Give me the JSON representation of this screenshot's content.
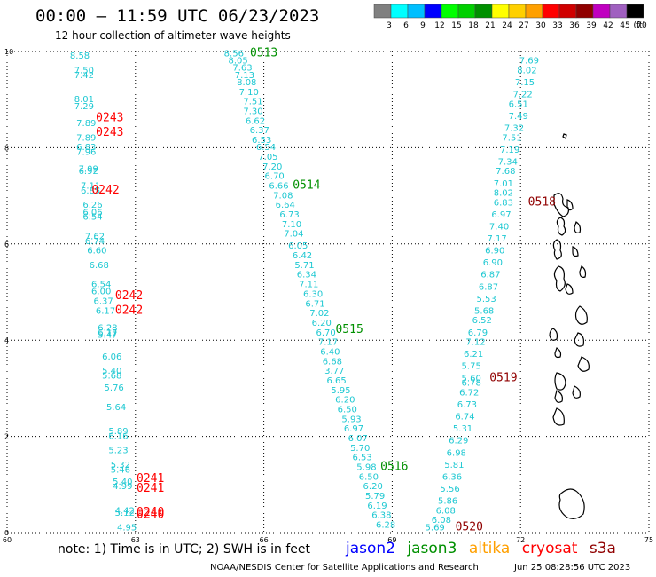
{
  "title": "00:00 – 11:59 UTC 06/23/2023",
  "subtitle": "12 hour collection of altimeter wave heights",
  "colorbar": {
    "unit": "(ft)",
    "labels": [
      "3",
      "6",
      "9",
      "12",
      "15",
      "18",
      "21",
      "24",
      "27",
      "30",
      "33",
      "36",
      "39",
      "42",
      "45",
      "70"
    ],
    "colors": [
      "#808080",
      "#00ffff",
      "#00bfff",
      "#0000ff",
      "#00ff00",
      "#00d000",
      "#009000",
      "#ffff00",
      "#ffd000",
      "#ffa000",
      "#ff0000",
      "#d00000",
      "#900000",
      "#c000c0",
      "#a060c0",
      "#000000"
    ]
  },
  "axes": {
    "x_ticks": [
      "60",
      "63",
      "66",
      "69",
      "72",
      "75"
    ],
    "y_ticks": [
      "0",
      "2",
      "4",
      "6",
      "8",
      "10"
    ],
    "xlim": [
      60,
      75
    ],
    "ylim": [
      0,
      10
    ]
  },
  "satellite_colors": {
    "jason2": "#0000ff",
    "jason3": "#009000",
    "altika": "#ffa000",
    "cryosat": "#ff0000",
    "s3a": "#900000"
  },
  "tracks": [
    {
      "name": "track-1",
      "color": "#ff0000",
      "times": [
        {
          "t": "0243",
          "lon": 62.4,
          "lat": 8.55
        },
        {
          "t": "0243",
          "lon": 62.4,
          "lat": 8.25
        },
        {
          "t": "0242",
          "lon": 62.3,
          "lat": 7.05
        },
        {
          "t": "0242",
          "lon": 62.85,
          "lat": 4.85
        },
        {
          "t": "0242",
          "lon": 62.85,
          "lat": 4.55
        },
        {
          "t": "0241",
          "lon": 63.35,
          "lat": 1.05
        },
        {
          "t": "0241",
          "lon": 63.35,
          "lat": 0.85
        },
        {
          "t": "0240",
          "lon": 63.35,
          "lat": 0.35
        },
        {
          "t": "0240",
          "lon": 63.35,
          "lat": 0.3
        }
      ],
      "points": [
        {
          "v": "8.58",
          "lon": 61.7,
          "lat": 9.85
        },
        {
          "v": "7.50",
          "lon": 61.8,
          "lat": 9.55
        },
        {
          "v": "7.42",
          "lon": 61.8,
          "lat": 9.45
        },
        {
          "v": "8.01",
          "lon": 61.8,
          "lat": 8.95
        },
        {
          "v": "7.29",
          "lon": 61.8,
          "lat": 8.8
        },
        {
          "v": "7.89",
          "lon": 61.85,
          "lat": 8.45
        },
        {
          "v": "7.89",
          "lon": 61.85,
          "lat": 8.15
        },
        {
          "v": "6.83",
          "lon": 61.85,
          "lat": 7.95
        },
        {
          "v": "7.96",
          "lon": 61.85,
          "lat": 7.85
        },
        {
          "v": "7.09",
          "lon": 61.9,
          "lat": 7.5
        },
        {
          "v": "6.92",
          "lon": 61.9,
          "lat": 7.45
        },
        {
          "v": "7.11",
          "lon": 61.95,
          "lat": 7.15
        },
        {
          "v": "6.85",
          "lon": 61.95,
          "lat": 7.05
        },
        {
          "v": "6.26",
          "lon": 62.0,
          "lat": 6.75
        },
        {
          "v": "6.06",
          "lon": 62.0,
          "lat": 6.6
        },
        {
          "v": "6.54",
          "lon": 62.0,
          "lat": 6.5
        },
        {
          "v": "7.62",
          "lon": 62.05,
          "lat": 6.1
        },
        {
          "v": "6.74",
          "lon": 62.05,
          "lat": 6.0
        },
        {
          "v": "6.60",
          "lon": 62.1,
          "lat": 5.8
        },
        {
          "v": "6.68",
          "lon": 62.15,
          "lat": 5.5
        },
        {
          "v": "6.54",
          "lon": 62.2,
          "lat": 5.1
        },
        {
          "v": "6.00",
          "lon": 62.2,
          "lat": 4.95
        },
        {
          "v": "6.37",
          "lon": 62.25,
          "lat": 4.75
        },
        {
          "v": "6.17",
          "lon": 62.3,
          "lat": 4.55
        },
        {
          "v": "6.28",
          "lon": 62.35,
          "lat": 4.2
        },
        {
          "v": "6.17",
          "lon": 62.35,
          "lat": 4.1
        },
        {
          "v": "5.47",
          "lon": 62.35,
          "lat": 4.05
        },
        {
          "v": "6.06",
          "lon": 62.45,
          "lat": 3.6
        },
        {
          "v": "5.40",
          "lon": 62.45,
          "lat": 3.3
        },
        {
          "v": "5.68",
          "lon": 62.45,
          "lat": 3.2
        },
        {
          "v": "5.76",
          "lon": 62.5,
          "lat": 2.95
        },
        {
          "v": "5.64",
          "lon": 62.55,
          "lat": 2.55
        },
        {
          "v": "5.89",
          "lon": 62.6,
          "lat": 2.05
        },
        {
          "v": "6.16",
          "lon": 62.6,
          "lat": 1.95
        },
        {
          "v": "5.23",
          "lon": 62.6,
          "lat": 1.65
        },
        {
          "v": "5.32",
          "lon": 62.65,
          "lat": 1.35
        },
        {
          "v": "5.46",
          "lon": 62.65,
          "lat": 1.25
        },
        {
          "v": "5.40",
          "lon": 62.7,
          "lat": 1.0
        },
        {
          "v": "4.99",
          "lon": 62.7,
          "lat": 0.9
        },
        {
          "v": "4.42",
          "lon": 62.75,
          "lat": 0.4
        },
        {
          "v": "5.12",
          "lon": 62.75,
          "lat": 0.35
        },
        {
          "v": "4.95",
          "lon": 62.8,
          "lat": 0.05
        }
      ]
    },
    {
      "name": "track-2",
      "color": "#009000",
      "times": [
        {
          "t": "0513",
          "lon": 66.0,
          "lat": 9.9
        },
        {
          "t": "0514",
          "lon": 67.0,
          "lat": 7.15
        },
        {
          "t": "0515",
          "lon": 68.0,
          "lat": 4.15
        },
        {
          "t": "0516",
          "lon": 69.05,
          "lat": 1.3
        }
      ],
      "points": [
        {
          "v": "8.56",
          "lon": 65.3,
          "lat": 9.9
        },
        {
          "v": "8.05",
          "lon": 65.4,
          "lat": 9.75
        },
        {
          "v": "7.63",
          "lon": 65.5,
          "lat": 9.6
        },
        {
          "v": "7.13",
          "lon": 65.55,
          "lat": 9.45
        },
        {
          "v": "8.08",
          "lon": 65.6,
          "lat": 9.3
        },
        {
          "v": "7.10",
          "lon": 65.65,
          "lat": 9.1
        },
        {
          "v": "7.51",
          "lon": 65.75,
          "lat": 8.9
        },
        {
          "v": "7.30",
          "lon": 65.75,
          "lat": 8.7
        },
        {
          "v": "6.62",
          "lon": 65.8,
          "lat": 8.5
        },
        {
          "v": "6.37",
          "lon": 65.9,
          "lat": 8.3
        },
        {
          "v": "6.53",
          "lon": 65.95,
          "lat": 8.1
        },
        {
          "v": "6.54",
          "lon": 66.05,
          "lat": 7.95
        },
        {
          "v": "7.05",
          "lon": 66.1,
          "lat": 7.75
        },
        {
          "v": "7.20",
          "lon": 66.2,
          "lat": 7.55
        },
        {
          "v": "6.70",
          "lon": 66.25,
          "lat": 7.35
        },
        {
          "v": "6.66",
          "lon": 66.35,
          "lat": 7.15
        },
        {
          "v": "7.08",
          "lon": 66.45,
          "lat": 6.95
        },
        {
          "v": "6.64",
          "lon": 66.5,
          "lat": 6.75
        },
        {
          "v": "6.73",
          "lon": 66.6,
          "lat": 6.55
        },
        {
          "v": "7.10",
          "lon": 66.65,
          "lat": 6.35
        },
        {
          "v": "7.04",
          "lon": 66.7,
          "lat": 6.15
        },
        {
          "v": "6.05",
          "lon": 66.8,
          "lat": 5.9
        },
        {
          "v": "6.42",
          "lon": 66.9,
          "lat": 5.7
        },
        {
          "v": "5.71",
          "lon": 66.95,
          "lat": 5.5
        },
        {
          "v": "6.34",
          "lon": 67.0,
          "lat": 5.3
        },
        {
          "v": "7.11",
          "lon": 67.05,
          "lat": 5.1
        },
        {
          "v": "6.30",
          "lon": 67.15,
          "lat": 4.9
        },
        {
          "v": "6.71",
          "lon": 67.2,
          "lat": 4.7
        },
        {
          "v": "7.02",
          "lon": 67.3,
          "lat": 4.5
        },
        {
          "v": "6.20",
          "lon": 67.35,
          "lat": 4.3
        },
        {
          "v": "6.70",
          "lon": 67.45,
          "lat": 4.1
        },
        {
          "v": "7.17",
          "lon": 67.5,
          "lat": 3.9
        },
        {
          "v": "6.40",
          "lon": 67.55,
          "lat": 3.7
        },
        {
          "v": "6.68",
          "lon": 67.6,
          "lat": 3.5
        },
        {
          "v": "3.77",
          "lon": 67.65,
          "lat": 3.3
        },
        {
          "v": "6.65",
          "lon": 67.7,
          "lat": 3.1
        },
        {
          "v": "5.95",
          "lon": 67.8,
          "lat": 2.9
        },
        {
          "v": "6.20",
          "lon": 67.9,
          "lat": 2.7
        },
        {
          "v": "6.50",
          "lon": 67.95,
          "lat": 2.5
        },
        {
          "v": "5.93",
          "lon": 68.05,
          "lat": 2.3
        },
        {
          "v": "6.97",
          "lon": 68.1,
          "lat": 2.1
        },
        {
          "v": "6.07",
          "lon": 68.2,
          "lat": 1.9
        },
        {
          "v": "5.70",
          "lon": 68.25,
          "lat": 1.7
        },
        {
          "v": "6.53",
          "lon": 68.3,
          "lat": 1.5
        },
        {
          "v": "5.98",
          "lon": 68.4,
          "lat": 1.3
        },
        {
          "v": "6.50",
          "lon": 68.45,
          "lat": 1.1
        },
        {
          "v": "6.20",
          "lon": 68.55,
          "lat": 0.9
        },
        {
          "v": "5.79",
          "lon": 68.6,
          "lat": 0.7
        },
        {
          "v": "6.19",
          "lon": 68.65,
          "lat": 0.5
        },
        {
          "v": "6.38",
          "lon": 68.75,
          "lat": 0.3
        },
        {
          "v": "6.28",
          "lon": 68.85,
          "lat": 0.1
        }
      ]
    },
    {
      "name": "track-3",
      "color": "#900000",
      "times": [
        {
          "t": "0518",
          "lon": 72.5,
          "lat": 6.8
        },
        {
          "t": "0519",
          "lon": 71.6,
          "lat": 3.15
        },
        {
          "t": "0520",
          "lon": 70.8,
          "lat": 0.05
        }
      ],
      "points": [
        {
          "v": "7.69",
          "lon": 72.2,
          "lat": 9.75
        },
        {
          "v": "8.02",
          "lon": 72.15,
          "lat": 9.55
        },
        {
          "v": "7.15",
          "lon": 72.1,
          "lat": 9.3
        },
        {
          "v": "7.22",
          "lon": 72.05,
          "lat": 9.05
        },
        {
          "v": "6.51",
          "lon": 71.95,
          "lat": 8.85
        },
        {
          "v": "7.49",
          "lon": 71.95,
          "lat": 8.6
        },
        {
          "v": "7.32",
          "lon": 71.85,
          "lat": 8.35
        },
        {
          "v": "7.51",
          "lon": 71.8,
          "lat": 8.15
        },
        {
          "v": "7.19",
          "lon": 71.75,
          "lat": 7.9
        },
        {
          "v": "7.34",
          "lon": 71.7,
          "lat": 7.65
        },
        {
          "v": "7.68",
          "lon": 71.65,
          "lat": 7.45
        },
        {
          "v": "7.01",
          "lon": 71.6,
          "lat": 7.2
        },
        {
          "v": "8.02",
          "lon": 71.6,
          "lat": 7.0
        },
        {
          "v": "6.83",
          "lon": 71.6,
          "lat": 6.8
        },
        {
          "v": "6.97",
          "lon": 71.55,
          "lat": 6.55
        },
        {
          "v": "7.40",
          "lon": 71.5,
          "lat": 6.3
        },
        {
          "v": "7.17",
          "lon": 71.45,
          "lat": 6.05
        },
        {
          "v": "6.90",
          "lon": 71.4,
          "lat": 5.8
        },
        {
          "v": "6.90",
          "lon": 71.35,
          "lat": 5.55
        },
        {
          "v": "6.87",
          "lon": 71.3,
          "lat": 5.3
        },
        {
          "v": "6.87",
          "lon": 71.25,
          "lat": 5.05
        },
        {
          "v": "5.53",
          "lon": 71.2,
          "lat": 4.8
        },
        {
          "v": "5.68",
          "lon": 71.15,
          "lat": 4.55
        },
        {
          "v": "6.52",
          "lon": 71.1,
          "lat": 4.35
        },
        {
          "v": "6.79",
          "lon": 71.0,
          "lat": 4.1
        },
        {
          "v": "7.12",
          "lon": 70.95,
          "lat": 3.9
        },
        {
          "v": "6.21",
          "lon": 70.9,
          "lat": 3.65
        },
        {
          "v": "5.75",
          "lon": 70.85,
          "lat": 3.4
        },
        {
          "v": "5.60",
          "lon": 70.85,
          "lat": 3.15
        },
        {
          "v": "6.78",
          "lon": 70.85,
          "lat": 3.05
        },
        {
          "v": "6.72",
          "lon": 70.8,
          "lat": 2.85
        },
        {
          "v": "6.73",
          "lon": 70.75,
          "lat": 2.6
        },
        {
          "v": "6.74",
          "lon": 70.7,
          "lat": 2.35
        },
        {
          "v": "5.31",
          "lon": 70.65,
          "lat": 2.1
        },
        {
          "v": "6.29",
          "lon": 70.55,
          "lat": 1.85
        },
        {
          "v": "6.98",
          "lon": 70.5,
          "lat": 1.6
        },
        {
          "v": "5.81",
          "lon": 70.45,
          "lat": 1.35
        },
        {
          "v": "6.36",
          "lon": 70.4,
          "lat": 1.1
        },
        {
          "v": "5.56",
          "lon": 70.35,
          "lat": 0.85
        },
        {
          "v": "5.86",
          "lon": 70.3,
          "lat": 0.6
        },
        {
          "v": "6.08",
          "lon": 70.25,
          "lat": 0.4
        },
        {
          "v": "6.08",
          "lon": 70.15,
          "lat": 0.2
        },
        {
          "v": "5.69",
          "lon": 70.0,
          "lat": 0.05
        }
      ]
    }
  ],
  "note": "note: 1) Time is in UTC; 2) SWH is in feet",
  "legend": [
    {
      "label": "jason2",
      "color": "#0000ff"
    },
    {
      "label": "jason3",
      "color": "#009000"
    },
    {
      "label": "altika",
      "color": "#ffa000"
    },
    {
      "label": "cryosat",
      "color": "#ff0000"
    },
    {
      "label": "s3a",
      "color": "#900000"
    }
  ],
  "credit": "NOAA/NESDIS Center for Satellite Applications and Research",
  "timestamp": "Jun 25 08:28:56 UTC 2023"
}
